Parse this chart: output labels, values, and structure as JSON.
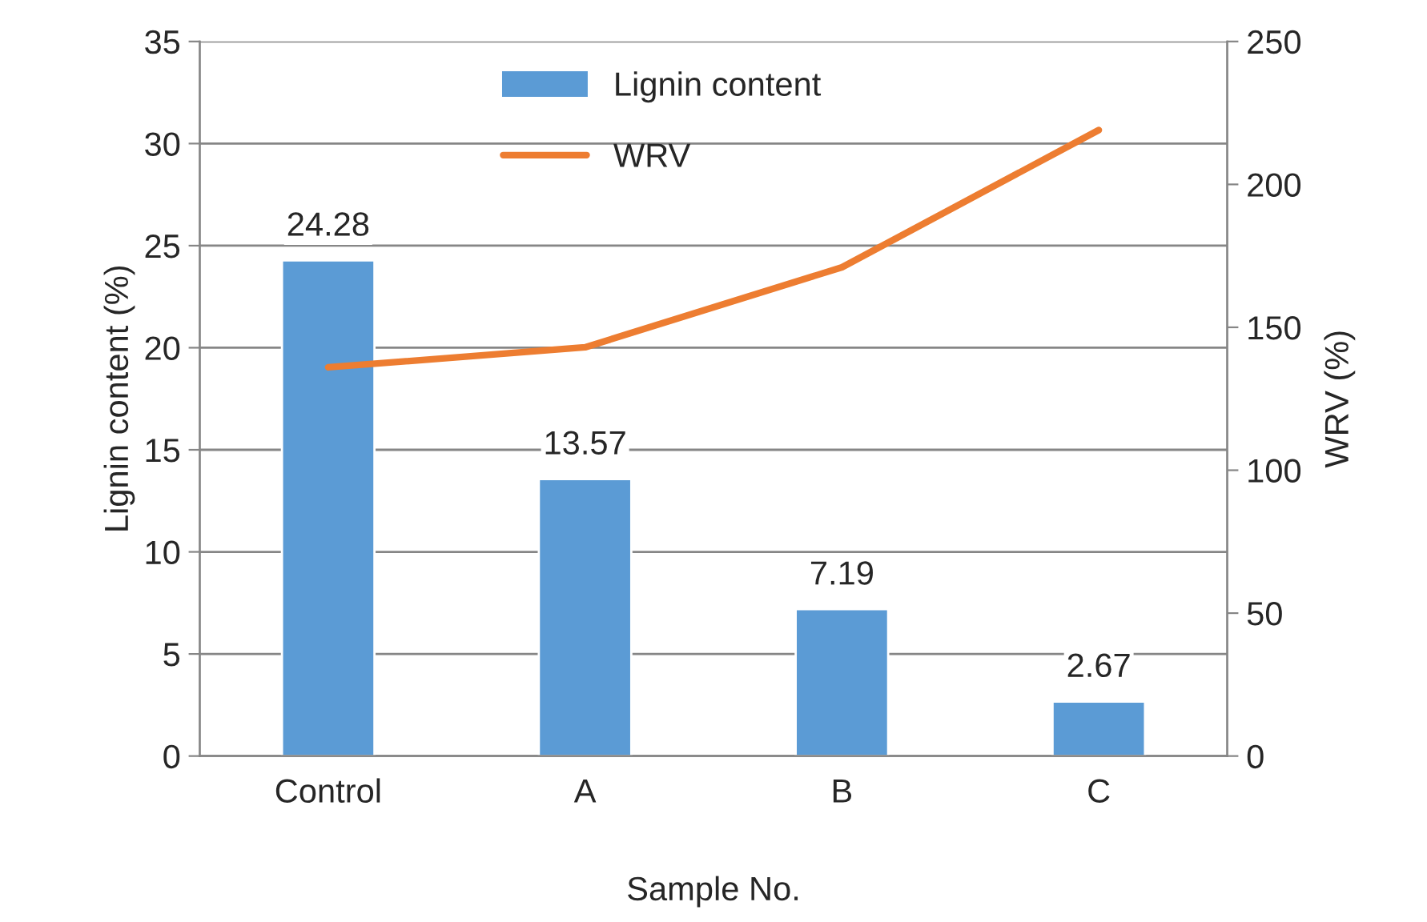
{
  "chart_data": {
    "type": "bar",
    "xlabel": "Sample No.",
    "ylabel": "Lignin content (%)",
    "y2label": "WRV (%)",
    "categories": [
      "Control",
      "A",
      "B",
      "C"
    ],
    "series": [
      {
        "name": "Lignin content",
        "color": "#5b9bd5",
        "values": [
          24.28,
          13.57,
          7.19,
          2.67
        ],
        "value_labels": [
          "24.28",
          "13.57",
          "7.19",
          "2.67"
        ]
      },
      {
        "name": "WRV",
        "type": "line",
        "axis": "y2",
        "color": "#ed7d31",
        "values": [
          136,
          143,
          171,
          219
        ]
      }
    ],
    "ylim": [
      0,
      35
    ],
    "yticks": [
      0,
      5,
      10,
      15,
      20,
      25,
      30,
      35
    ],
    "y2lim": [
      0,
      250
    ],
    "y2ticks": [
      0,
      50,
      100,
      150,
      200,
      250
    ],
    "grid": "y",
    "legend": "top"
  }
}
